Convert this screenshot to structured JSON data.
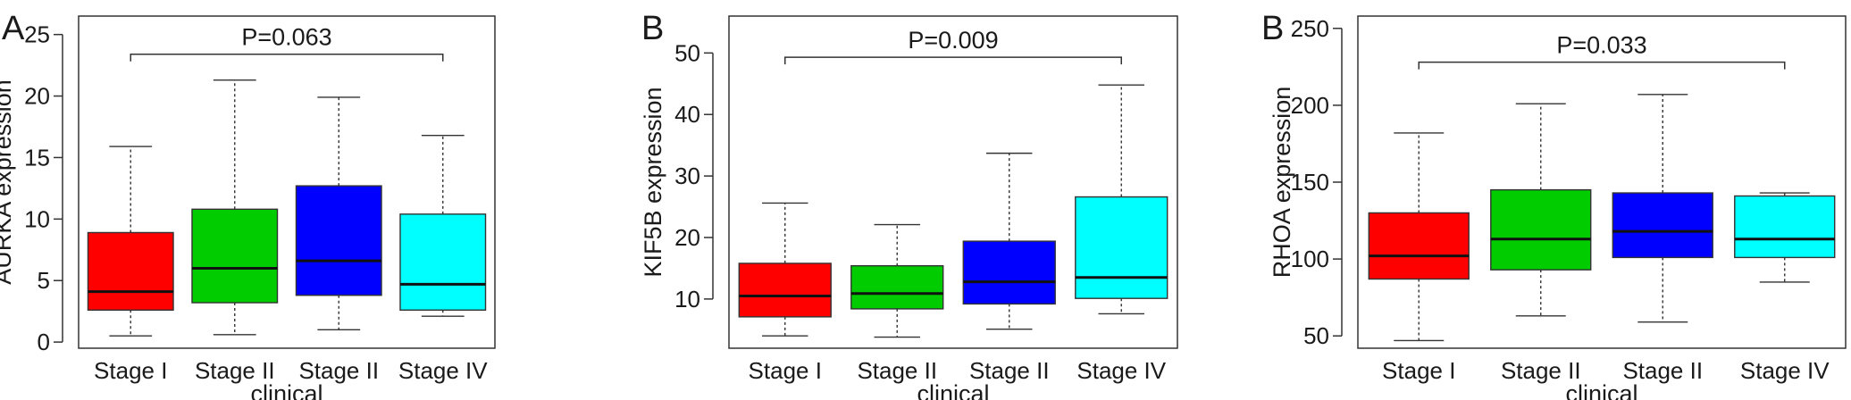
{
  "chart_data": [
    {
      "type": "boxplot",
      "panel_label": "A",
      "ylabel": "AURKA expression",
      "xlabel": "clinical",
      "categories": [
        "Stage I",
        "Stage II",
        "Stage II",
        "Stage IV"
      ],
      "ylim": [
        -0.5,
        26.5
      ],
      "yticks": [
        0,
        5,
        10,
        15,
        20,
        25
      ],
      "boxes": [
        {
          "color": "#ff0000",
          "whisker_low": 0.5,
          "q1": 2.6,
          "median": 4.1,
          "q3": 8.9,
          "whisker_high": 15.9
        },
        {
          "color": "#00cc00",
          "whisker_low": 0.6,
          "q1": 3.2,
          "median": 6.0,
          "q3": 10.8,
          "whisker_high": 21.3
        },
        {
          "color": "#0000ff",
          "whisker_low": 1.0,
          "q1": 3.8,
          "median": 6.6,
          "q3": 12.7,
          "whisker_high": 19.9
        },
        {
          "color": "#00ffff",
          "whisker_low": 2.1,
          "q1": 2.6,
          "median": 4.7,
          "q3": 10.4,
          "whisker_high": 16.8
        }
      ],
      "annotation": {
        "text": "P=0.063",
        "from": 0,
        "to": 3,
        "y": 23.4
      }
    },
    {
      "type": "boxplot",
      "panel_label": "B",
      "ylabel": "KIF5B expression",
      "xlabel": "clinical",
      "categories": [
        "Stage I",
        "Stage II",
        "Stage II",
        "Stage IV"
      ],
      "ylim": [
        2.0,
        56.0
      ],
      "yticks": [
        10,
        20,
        30,
        40,
        50
      ],
      "boxes": [
        {
          "color": "#ff0000",
          "whisker_low": 4.0,
          "q1": 7.1,
          "median": 10.5,
          "q3": 15.8,
          "whisker_high": 25.6
        },
        {
          "color": "#00cc00",
          "whisker_low": 3.8,
          "q1": 8.4,
          "median": 10.9,
          "q3": 15.4,
          "whisker_high": 22.1
        },
        {
          "color": "#0000ff",
          "whisker_low": 5.1,
          "q1": 9.2,
          "median": 12.8,
          "q3": 19.4,
          "whisker_high": 33.7
        },
        {
          "color": "#00ffff",
          "whisker_low": 7.6,
          "q1": 10.1,
          "median": 13.5,
          "q3": 26.6,
          "whisker_high": 44.8
        }
      ],
      "annotation": {
        "text": "P=0.009",
        "from": 0,
        "to": 3,
        "y": 49.3
      }
    },
    {
      "type": "boxplot",
      "panel_label": "B",
      "ylabel": "RHOA expression",
      "xlabel": "clinical",
      "categories": [
        "Stage I",
        "Stage II",
        "Stage II",
        "Stage IV"
      ],
      "ylim": [
        42.0,
        258.0
      ],
      "yticks": [
        50,
        100,
        150,
        200,
        250
      ],
      "boxes": [
        {
          "color": "#ff0000",
          "whisker_low": 47.0,
          "q1": 87.0,
          "median": 102.0,
          "q3": 130.0,
          "whisker_high": 182.0
        },
        {
          "color": "#00cc00",
          "whisker_low": 63.0,
          "q1": 93.0,
          "median": 113.0,
          "q3": 145.0,
          "whisker_high": 201.0
        },
        {
          "color": "#0000ff",
          "whisker_low": 59.0,
          "q1": 101.0,
          "median": 118.0,
          "q3": 143.0,
          "whisker_high": 207.0
        },
        {
          "color": "#00ffff",
          "whisker_low": 85.0,
          "q1": 101.0,
          "median": 113.0,
          "q3": 141.0,
          "whisker_high": 143.0
        }
      ],
      "annotation": {
        "text": "P=0.033",
        "from": 0,
        "to": 3,
        "y": 228.0
      }
    }
  ]
}
